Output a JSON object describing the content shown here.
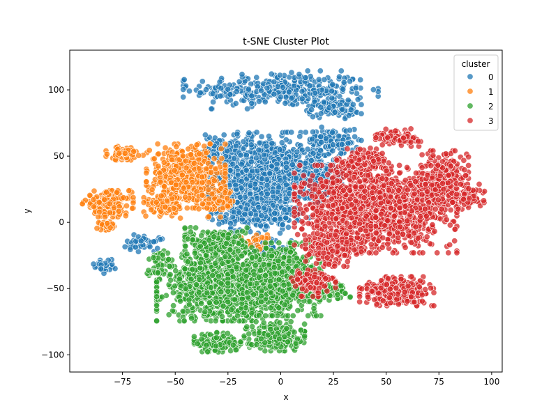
{
  "chart_data": {
    "type": "scatter",
    "title": "t-SNE Cluster Plot",
    "xlabel": "x",
    "ylabel": "y",
    "xlim": [
      -100,
      105
    ],
    "ylim": [
      -113,
      130
    ],
    "xticks": [
      -75,
      -50,
      -25,
      0,
      25,
      50,
      75,
      100
    ],
    "yticks": [
      -100,
      -50,
      0,
      50,
      100
    ],
    "grid": false,
    "legend": {
      "title": "cluster",
      "placement": "top-right",
      "entries": [
        "0",
        "1",
        "2",
        "3"
      ]
    },
    "series": [
      {
        "name": "0",
        "color": "#1f77b4",
        "regions": [
          {
            "cx": 0,
            "cy": 100,
            "rx": 42,
            "ry": 13,
            "n": 330
          },
          {
            "cx": 25,
            "cy": 86,
            "rx": 12,
            "ry": 7,
            "n": 90
          },
          {
            "cx": -8,
            "cy": 35,
            "rx": 24,
            "ry": 30,
            "n": 900
          },
          {
            "cx": 18,
            "cy": 38,
            "rx": 14,
            "ry": 22,
            "n": 250
          },
          {
            "cx": 25,
            "cy": 62,
            "rx": 12,
            "ry": 9,
            "n": 90
          },
          {
            "cx": -30,
            "cy": 55,
            "rx": 10,
            "ry": 10,
            "n": 80
          },
          {
            "cx": -12,
            "cy": 5,
            "rx": 18,
            "ry": 12,
            "n": 180
          },
          {
            "cx": -65,
            "cy": -16,
            "rx": 8,
            "ry": 6,
            "n": 45
          },
          {
            "cx": -84,
            "cy": -33,
            "rx": 5,
            "ry": 5,
            "n": 30
          },
          {
            "cx": -6,
            "cy": -18,
            "rx": 10,
            "ry": 7,
            "n": 50
          }
        ]
      },
      {
        "name": "1",
        "color": "#ff7f0e",
        "regions": [
          {
            "cx": -45,
            "cy": 35,
            "rx": 17,
            "ry": 22,
            "n": 550
          },
          {
            "cx": -74,
            "cy": 52,
            "rx": 8,
            "ry": 5,
            "n": 80
          },
          {
            "cx": -82,
            "cy": 14,
            "rx": 11,
            "ry": 9,
            "n": 200
          },
          {
            "cx": -55,
            "cy": 12,
            "rx": 9,
            "ry": 8,
            "n": 90
          },
          {
            "cx": -82,
            "cy": -3,
            "rx": 5,
            "ry": 3,
            "n": 35
          },
          {
            "cx": -30,
            "cy": 15,
            "rx": 8,
            "ry": 10,
            "n": 60
          },
          {
            "cx": -10,
            "cy": -15,
            "rx": 8,
            "ry": 6,
            "n": 25
          }
        ]
      },
      {
        "name": "2",
        "color": "#2ca02c",
        "regions": [
          {
            "cx": -28,
            "cy": -48,
            "rx": 28,
            "ry": 24,
            "n": 1000
          },
          {
            "cx": -3,
            "cy": -43,
            "rx": 20,
            "ry": 25,
            "n": 700
          },
          {
            "cx": -30,
            "cy": -15,
            "rx": 14,
            "ry": 10,
            "n": 200
          },
          {
            "cx": -30,
            "cy": -91,
            "rx": 10,
            "ry": 7,
            "n": 150
          },
          {
            "cx": -3,
            "cy": -86,
            "rx": 13,
            "ry": 10,
            "n": 220
          },
          {
            "cx": 22,
            "cy": -52,
            "rx": 10,
            "ry": 7,
            "n": 70
          },
          {
            "cx": -58,
            "cy": -28,
            "rx": 6,
            "ry": 6,
            "n": 35
          },
          {
            "cx": -60,
            "cy": -38,
            "rx": 4,
            "ry": 3,
            "n": 15
          }
        ]
      },
      {
        "name": "3",
        "color": "#d62728",
        "regions": [
          {
            "cx": 45,
            "cy": 10,
            "rx": 35,
            "ry": 30,
            "n": 1300
          },
          {
            "cx": 78,
            "cy": 32,
            "rx": 10,
            "ry": 20,
            "n": 300
          },
          {
            "cx": 90,
            "cy": 20,
            "rx": 6,
            "ry": 8,
            "n": 70
          },
          {
            "cx": 56,
            "cy": 64,
            "rx": 10,
            "ry": 6,
            "n": 100
          },
          {
            "cx": 55,
            "cy": -52,
            "rx": 16,
            "ry": 10,
            "n": 320
          },
          {
            "cx": 25,
            "cy": -20,
            "rx": 12,
            "ry": 12,
            "n": 200
          },
          {
            "cx": 15,
            "cy": -45,
            "rx": 10,
            "ry": 10,
            "n": 120
          },
          {
            "cx": 38,
            "cy": 45,
            "rx": 12,
            "ry": 10,
            "n": 150
          }
        ]
      }
    ]
  }
}
